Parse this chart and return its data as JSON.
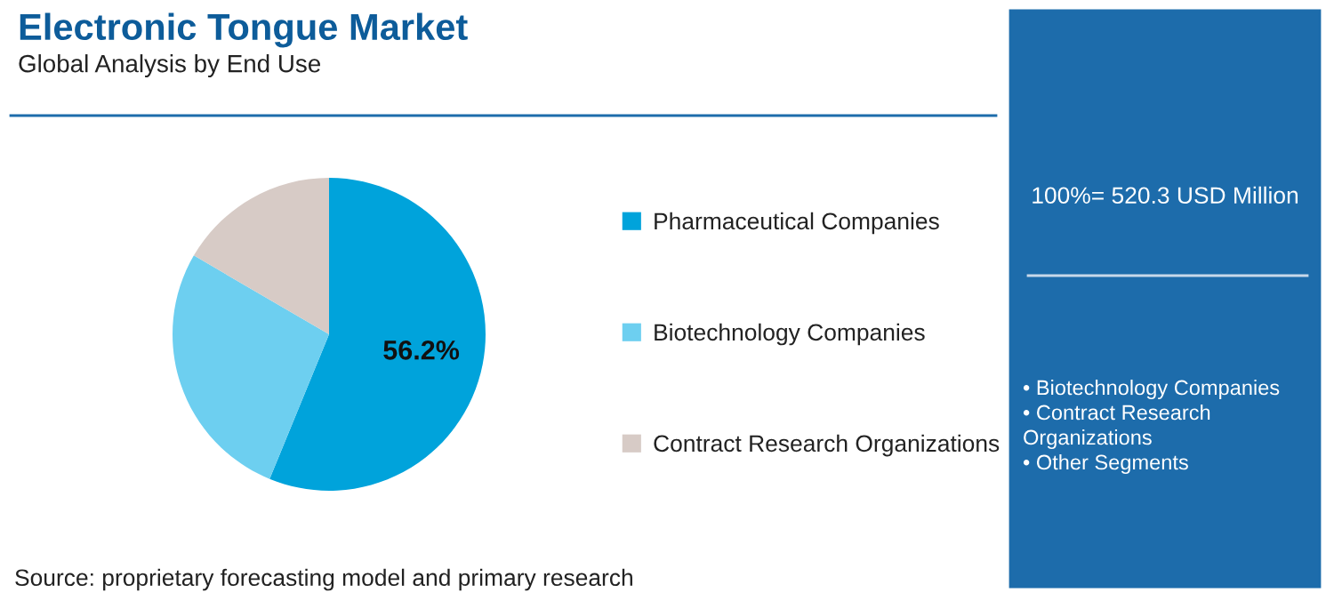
{
  "chart_data": {
    "type": "pie",
    "title": "Electronic Tongue Market",
    "subtitle": "Global Analysis by End Use",
    "categories": [
      "Pharmaceutical Companies",
      "Biotechnology Companies",
      "Contract Research Organizations"
    ],
    "values": [
      56.2,
      27.2,
      16.6
    ],
    "colors": [
      "#00a3db",
      "#6dcff0",
      "#d7cbc6"
    ],
    "value_labels": [
      "56.2%",
      null,
      null
    ],
    "legend": "right",
    "annotations": [
      "100%= 520.3 USD Million",
      "• Biotechnology Companies\n• Contract Research\nOrganizations\n• Other Segments",
      "Source: proprietary forecasting model and primary research"
    ]
  }
}
